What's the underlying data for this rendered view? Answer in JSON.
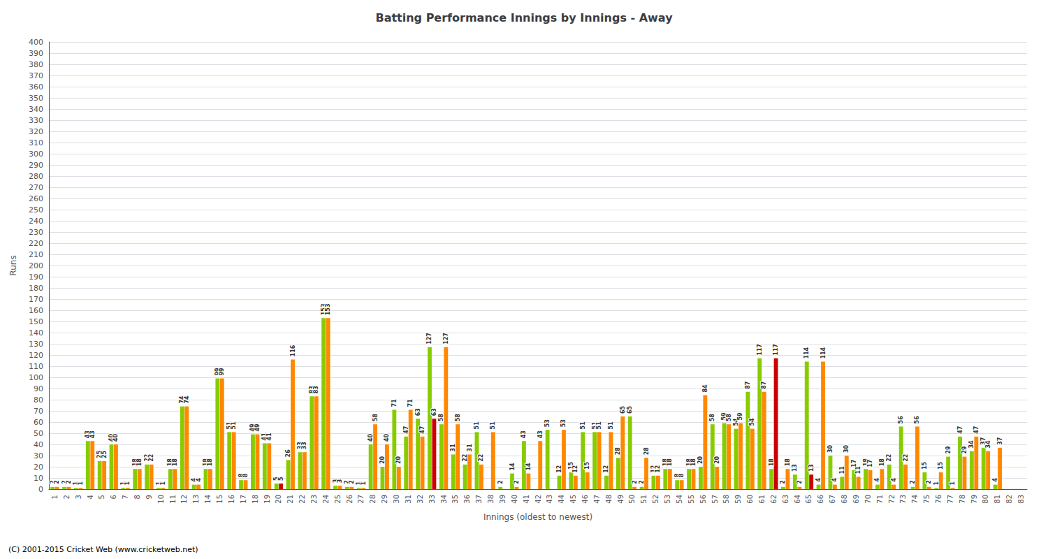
{
  "chart_data": {
    "type": "bar",
    "title": "Batting Performance Innings by Innings - Away",
    "xlabel": "Innings (oldest to newest)",
    "ylabel": "Runs",
    "annotations": [
      "(C) 2001-2015 Cricket Web (www.cricketweb.net)"
    ],
    "categories": [
      "1",
      "2",
      "3",
      "4",
      "5",
      "6",
      "7",
      "8",
      "9",
      "10",
      "11",
      "12",
      "13",
      "14",
      "15",
      "16",
      "17",
      "18",
      "19",
      "20",
      "21",
      "22",
      "23",
      "24",
      "25",
      "26",
      "27",
      "28",
      "29",
      "30",
      "31",
      "32",
      "33",
      "34",
      "35",
      "36",
      "37",
      "38",
      "39",
      "40",
      "41",
      "42",
      "43",
      "44",
      "45",
      "46",
      "47",
      "48",
      "49",
      "50",
      "51",
      "52",
      "53",
      "54",
      "55",
      "56",
      "57",
      "58",
      "59",
      "60",
      "61",
      "62",
      "63",
      "64",
      "65",
      "66",
      "67",
      "68",
      "69",
      "70",
      "71",
      "72",
      "73",
      "74",
      "75",
      "76",
      "77",
      "78",
      "79",
      "80",
      "81",
      "82",
      "83"
    ],
    "series": [
      {
        "color": "#88cc00",
        "values": [
          2,
          2,
          1,
          43,
          25,
          40,
          1,
          18,
          22,
          1,
          18,
          74,
          4,
          18,
          99,
          51,
          8,
          49,
          41,
          5,
          26,
          33,
          83,
          153,
          3,
          2,
          1,
          40,
          20,
          71,
          47,
          63,
          127,
          58,
          31,
          22,
          51,
          0,
          2,
          14,
          43,
          0,
          53,
          12,
          15,
          51,
          51,
          12,
          28,
          65,
          2,
          12,
          18,
          8,
          18,
          20,
          58,
          59,
          54,
          87,
          117,
          18,
          2,
          13,
          114,
          4,
          30,
          11,
          17,
          18,
          4,
          22,
          56,
          2,
          15,
          1,
          29,
          47,
          34,
          37,
          4,
          0,
          0
        ],
        "value_labels": [
          "2",
          "2",
          "1",
          "43",
          "25",
          "40",
          "1",
          "18",
          "22",
          "1",
          "18",
          "74",
          "4",
          "18",
          "99",
          "51",
          "8",
          "49",
          "41",
          "5",
          "26",
          "33",
          "83",
          "153",
          "3",
          "2",
          "1",
          "40",
          "20",
          "71",
          "47",
          "63",
          "127",
          "58",
          "31",
          "22",
          "51",
          null,
          "2",
          "14",
          "43",
          null,
          "53",
          "12",
          "15",
          "51",
          "51",
          "12",
          "28",
          "65",
          "2",
          "12",
          "18",
          "8",
          "18",
          "20",
          "58",
          "59",
          "54",
          "87",
          "117",
          "18",
          "2",
          "13",
          "114",
          "4",
          "30",
          "11",
          "17",
          "18",
          "4",
          "22",
          "56",
          "2",
          "15",
          "1",
          "29",
          "47",
          "34",
          "37",
          "4",
          null,
          null
        ]
      },
      {
        "colors": [
          "#ff8800",
          "#ff8800",
          "#ff8800",
          "#ff8800",
          "#ff8800",
          "#ff8800",
          "#ff8800",
          "#ff8800",
          "#ff8800",
          "#ff8800",
          "#ff8800",
          "#ff8800",
          "#ff8800",
          "#ff8800",
          "#ff8800",
          "#ff8800",
          "#ff8800",
          "#ff8800",
          "#ff8800",
          "#cc0000",
          "#ff8800",
          "#ff8800",
          "#ff8800",
          "#ff8800",
          "#ff8800",
          "#ff8800",
          "#ff8800",
          "#ff8800",
          "#ff8800",
          "#ff8800",
          "#ff8800",
          "#ff8800",
          "#cc0000",
          "#ff8800",
          "#ff8800",
          "#ff8800",
          "#ff8800",
          "#ff8800",
          "#ff8800",
          "#ff8800",
          "#ff8800",
          "#ff8800",
          "#ff8800",
          "#ff8800",
          "#ff8800",
          "#ff8800",
          "#ff8800",
          "#ff8800",
          "#ff8800",
          "#ff8800",
          "#ff8800",
          "#ff8800",
          "#ff8800",
          "#ff8800",
          "#ff8800",
          "#ff8800",
          "#ff8800",
          "#ff8800",
          "#ff8800",
          "#ff8800",
          "#ff8800",
          "#cc0000",
          "#ff8800",
          "#ff8800",
          "#cc0000",
          "#ff8800",
          "#ff8800",
          "#ff8800",
          "#ff8800",
          "#ff8800",
          "#ff8800",
          "#ff8800",
          "#ff8800",
          "#ff8800",
          "#ff8800",
          "#ff8800",
          "#ff8800",
          "#ff8800",
          "#ff8800",
          "#ff8800",
          "#ff8800",
          "#ff8800",
          "#ff8800"
        ],
        "values": [
          2,
          2,
          1,
          43,
          25,
          40,
          1,
          18,
          22,
          1,
          18,
          74,
          4,
          18,
          99,
          51,
          8,
          49,
          41,
          5,
          116,
          33,
          83,
          153,
          3,
          2,
          1,
          58,
          40,
          20,
          71,
          47,
          63,
          127,
          58,
          31,
          22,
          51,
          0,
          2,
          14,
          43,
          0,
          53,
          12,
          15,
          51,
          51,
          65,
          2,
          28,
          12,
          18,
          8,
          18,
          84,
          20,
          58,
          59,
          54,
          87,
          117,
          18,
          2,
          13,
          114,
          4,
          30,
          11,
          17,
          18,
          4,
          22,
          56,
          2,
          15,
          1,
          29,
          47,
          34,
          37,
          0,
          0
        ],
        "value_labels": [
          "2",
          "2",
          "1",
          "43",
          "25",
          "40",
          "1",
          "18",
          "22",
          "1",
          "18",
          "74",
          "4",
          "18",
          "99",
          "51",
          "8",
          "49",
          "41",
          "5",
          "116",
          "33",
          "83",
          "153",
          "3",
          "2",
          "1",
          "58",
          "40",
          "20",
          "71",
          "47",
          "63",
          "127",
          "58",
          "31",
          "22",
          "51",
          null,
          "2",
          "14",
          "43",
          null,
          "53",
          "12",
          "15",
          "51",
          "51",
          "65",
          "2",
          "28",
          "12",
          "18",
          "8",
          "18",
          "84",
          "20",
          "58",
          "59",
          "54",
          "87",
          "117",
          "18",
          "2",
          "13",
          "114",
          "4",
          "30",
          "11",
          "17",
          "18",
          "4",
          "22",
          "56",
          "2",
          "15",
          "1",
          "29",
          "47",
          "34",
          "37",
          null,
          null
        ]
      }
    ],
    "ylim": [
      0,
      400
    ],
    "yticks": [
      0,
      10,
      20,
      30,
      40,
      50,
      60,
      70,
      80,
      90,
      100,
      110,
      120,
      130,
      140,
      150,
      160,
      170,
      180,
      190,
      200,
      210,
      220,
      230,
      240,
      250,
      260,
      270,
      280,
      290,
      300,
      310,
      320,
      330,
      340,
      350,
      360,
      370,
      380,
      390,
      400
    ],
    "grid": true,
    "data_labels": true
  }
}
